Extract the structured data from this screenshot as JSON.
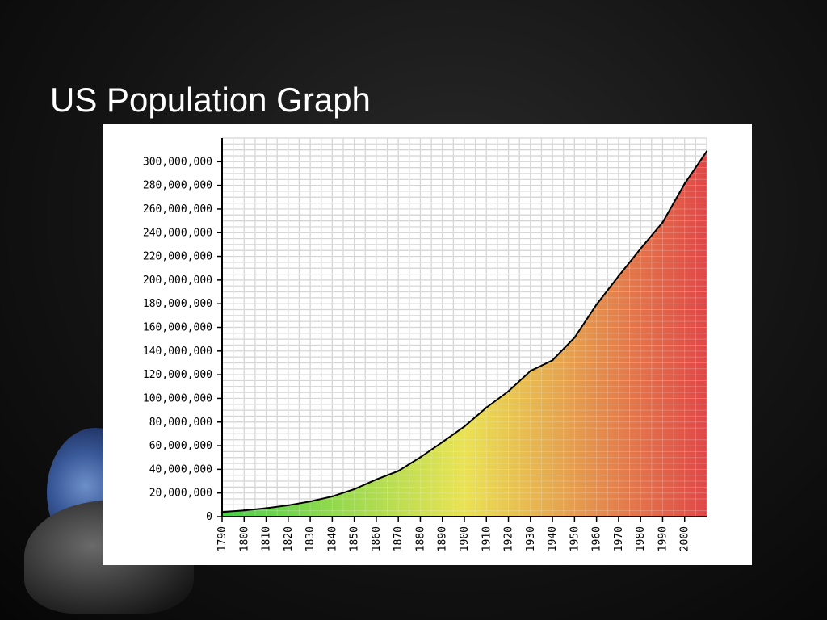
{
  "slide": {
    "title": "US Population Graph"
  },
  "chart_data": {
    "type": "area",
    "title": "",
    "xlabel": "",
    "ylabel": "",
    "x_ticks": [
      "1790",
      "1800",
      "1810",
      "1820",
      "1830",
      "1840",
      "1850",
      "1860",
      "1870",
      "1880",
      "1890",
      "1900",
      "1910",
      "1920",
      "1930",
      "1940",
      "1950",
      "1960",
      "1970",
      "1980",
      "1990",
      "2000"
    ],
    "y_ticks": [
      "0",
      "20,000,000",
      "40,000,000",
      "60,000,000",
      "80,000,000",
      "100,000,000",
      "120,000,000",
      "140,000,000",
      "160,000,000",
      "180,000,000",
      "200,000,000",
      "220,000,000",
      "240,000,000",
      "260,000,000",
      "280,000,000",
      "300,000,000"
    ],
    "xlim": [
      1790,
      2010
    ],
    "ylim": [
      0,
      320000000
    ],
    "grid": true,
    "legend": "none",
    "x": [
      1790,
      1800,
      1810,
      1820,
      1830,
      1840,
      1850,
      1860,
      1870,
      1880,
      1890,
      1900,
      1910,
      1920,
      1930,
      1940,
      1950,
      1960,
      1970,
      1980,
      1990,
      2000,
      2010
    ],
    "y": [
      3900000,
      5300000,
      7200000,
      9600000,
      12900000,
      17100000,
      23200000,
      31400000,
      38600000,
      50200000,
      63000000,
      76200000,
      92200000,
      106000000,
      123200000,
      132200000,
      151300000,
      179300000,
      203300000,
      226500000,
      248700000,
      281400000,
      308700000
    ],
    "colors": {
      "start": "#33cc33",
      "middle": "#e8e040",
      "end": "#dd3333",
      "line": "#000000"
    }
  }
}
